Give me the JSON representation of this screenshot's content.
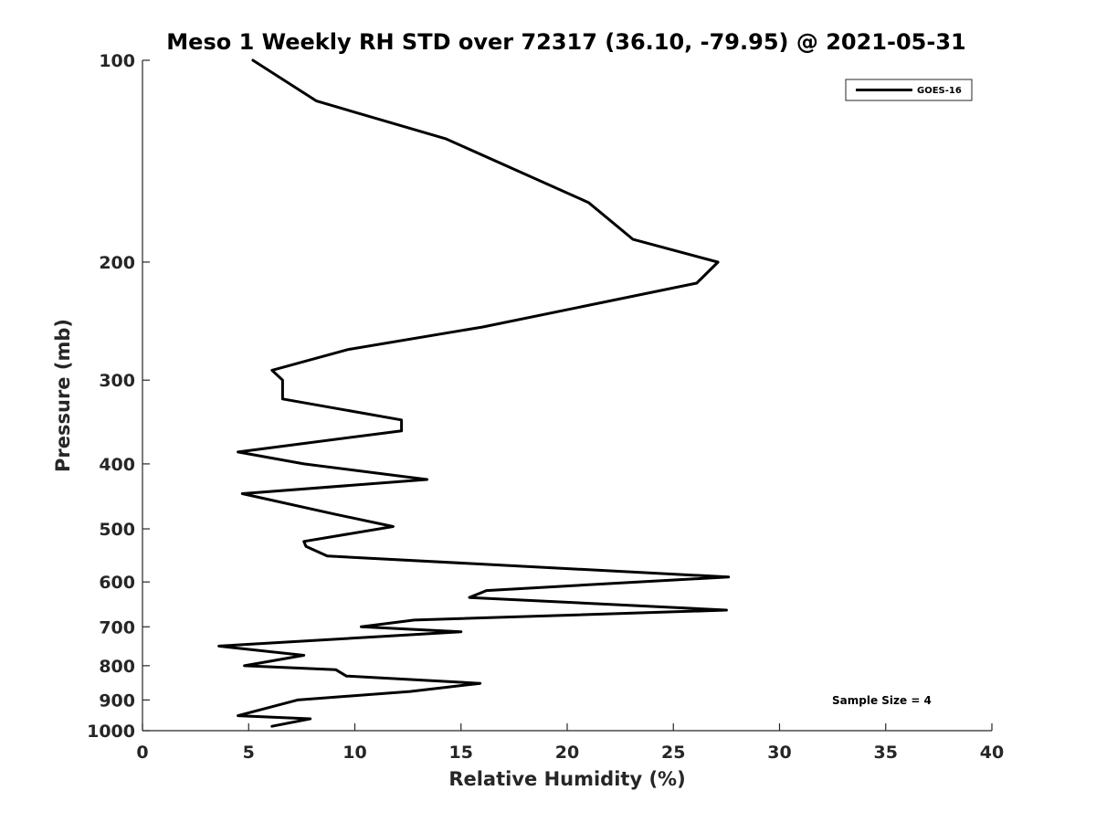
{
  "chart_data": {
    "type": "line",
    "title": "Meso 1 Weekly RH STD over 72317 (36.10, -79.95) @ 2021-05-31",
    "xlabel": "Relative Humidity (%)",
    "ylabel": "Pressure (mb)",
    "xlim": [
      0,
      40
    ],
    "ylim": [
      1000,
      100
    ],
    "yscale": "log",
    "yreversed": true,
    "xticks": [
      0,
      5,
      10,
      15,
      20,
      25,
      30,
      35,
      40
    ],
    "xtick_labels": [
      "0",
      "5",
      "10",
      "15",
      "20",
      "25",
      "30",
      "35",
      "40"
    ],
    "yticks": [
      100,
      200,
      300,
      400,
      500,
      600,
      700,
      800,
      900,
      1000
    ],
    "ytick_labels": [
      "100",
      "200",
      "300",
      "400",
      "500",
      "600",
      "700",
      "800",
      "900",
      "1000"
    ],
    "grid": false,
    "legend_position": "top-right",
    "series": [
      {
        "name": "GOES-16",
        "color": "#000000",
        "points": [
          [
            5.2,
            100
          ],
          [
            8.2,
            115
          ],
          [
            14.3,
            131
          ],
          [
            21.0,
            163
          ],
          [
            23.1,
            185
          ],
          [
            27.1,
            200
          ],
          [
            26.1,
            215
          ],
          [
            16.0,
            250
          ],
          [
            9.7,
            270
          ],
          [
            6.1,
            290
          ],
          [
            6.6,
            300
          ],
          [
            6.6,
            320
          ],
          [
            12.2,
            344
          ],
          [
            12.2,
            357
          ],
          [
            4.5,
            384
          ],
          [
            7.6,
            400
          ],
          [
            13.4,
            422
          ],
          [
            4.7,
            443
          ],
          [
            9.0,
            475
          ],
          [
            11.8,
            496
          ],
          [
            7.6,
            522
          ],
          [
            7.7,
            531
          ],
          [
            8.7,
            549
          ],
          [
            27.6,
            590
          ],
          [
            23.3,
            600
          ],
          [
            16.2,
            618
          ],
          [
            15.4,
            633
          ],
          [
            27.5,
            661
          ],
          [
            12.8,
            684
          ],
          [
            10.3,
            700
          ],
          [
            15.0,
            712
          ],
          [
            3.6,
            748
          ],
          [
            7.6,
            772
          ],
          [
            4.8,
            800
          ],
          [
            9.1,
            811
          ],
          [
            9.6,
            829
          ],
          [
            15.9,
            850
          ],
          [
            12.6,
            874
          ],
          [
            7.3,
            900
          ],
          [
            4.5,
            950
          ],
          [
            7.9,
            960
          ],
          [
            6.1,
            985
          ]
        ]
      }
    ],
    "annotations": [
      "Sample Size = 4"
    ]
  }
}
